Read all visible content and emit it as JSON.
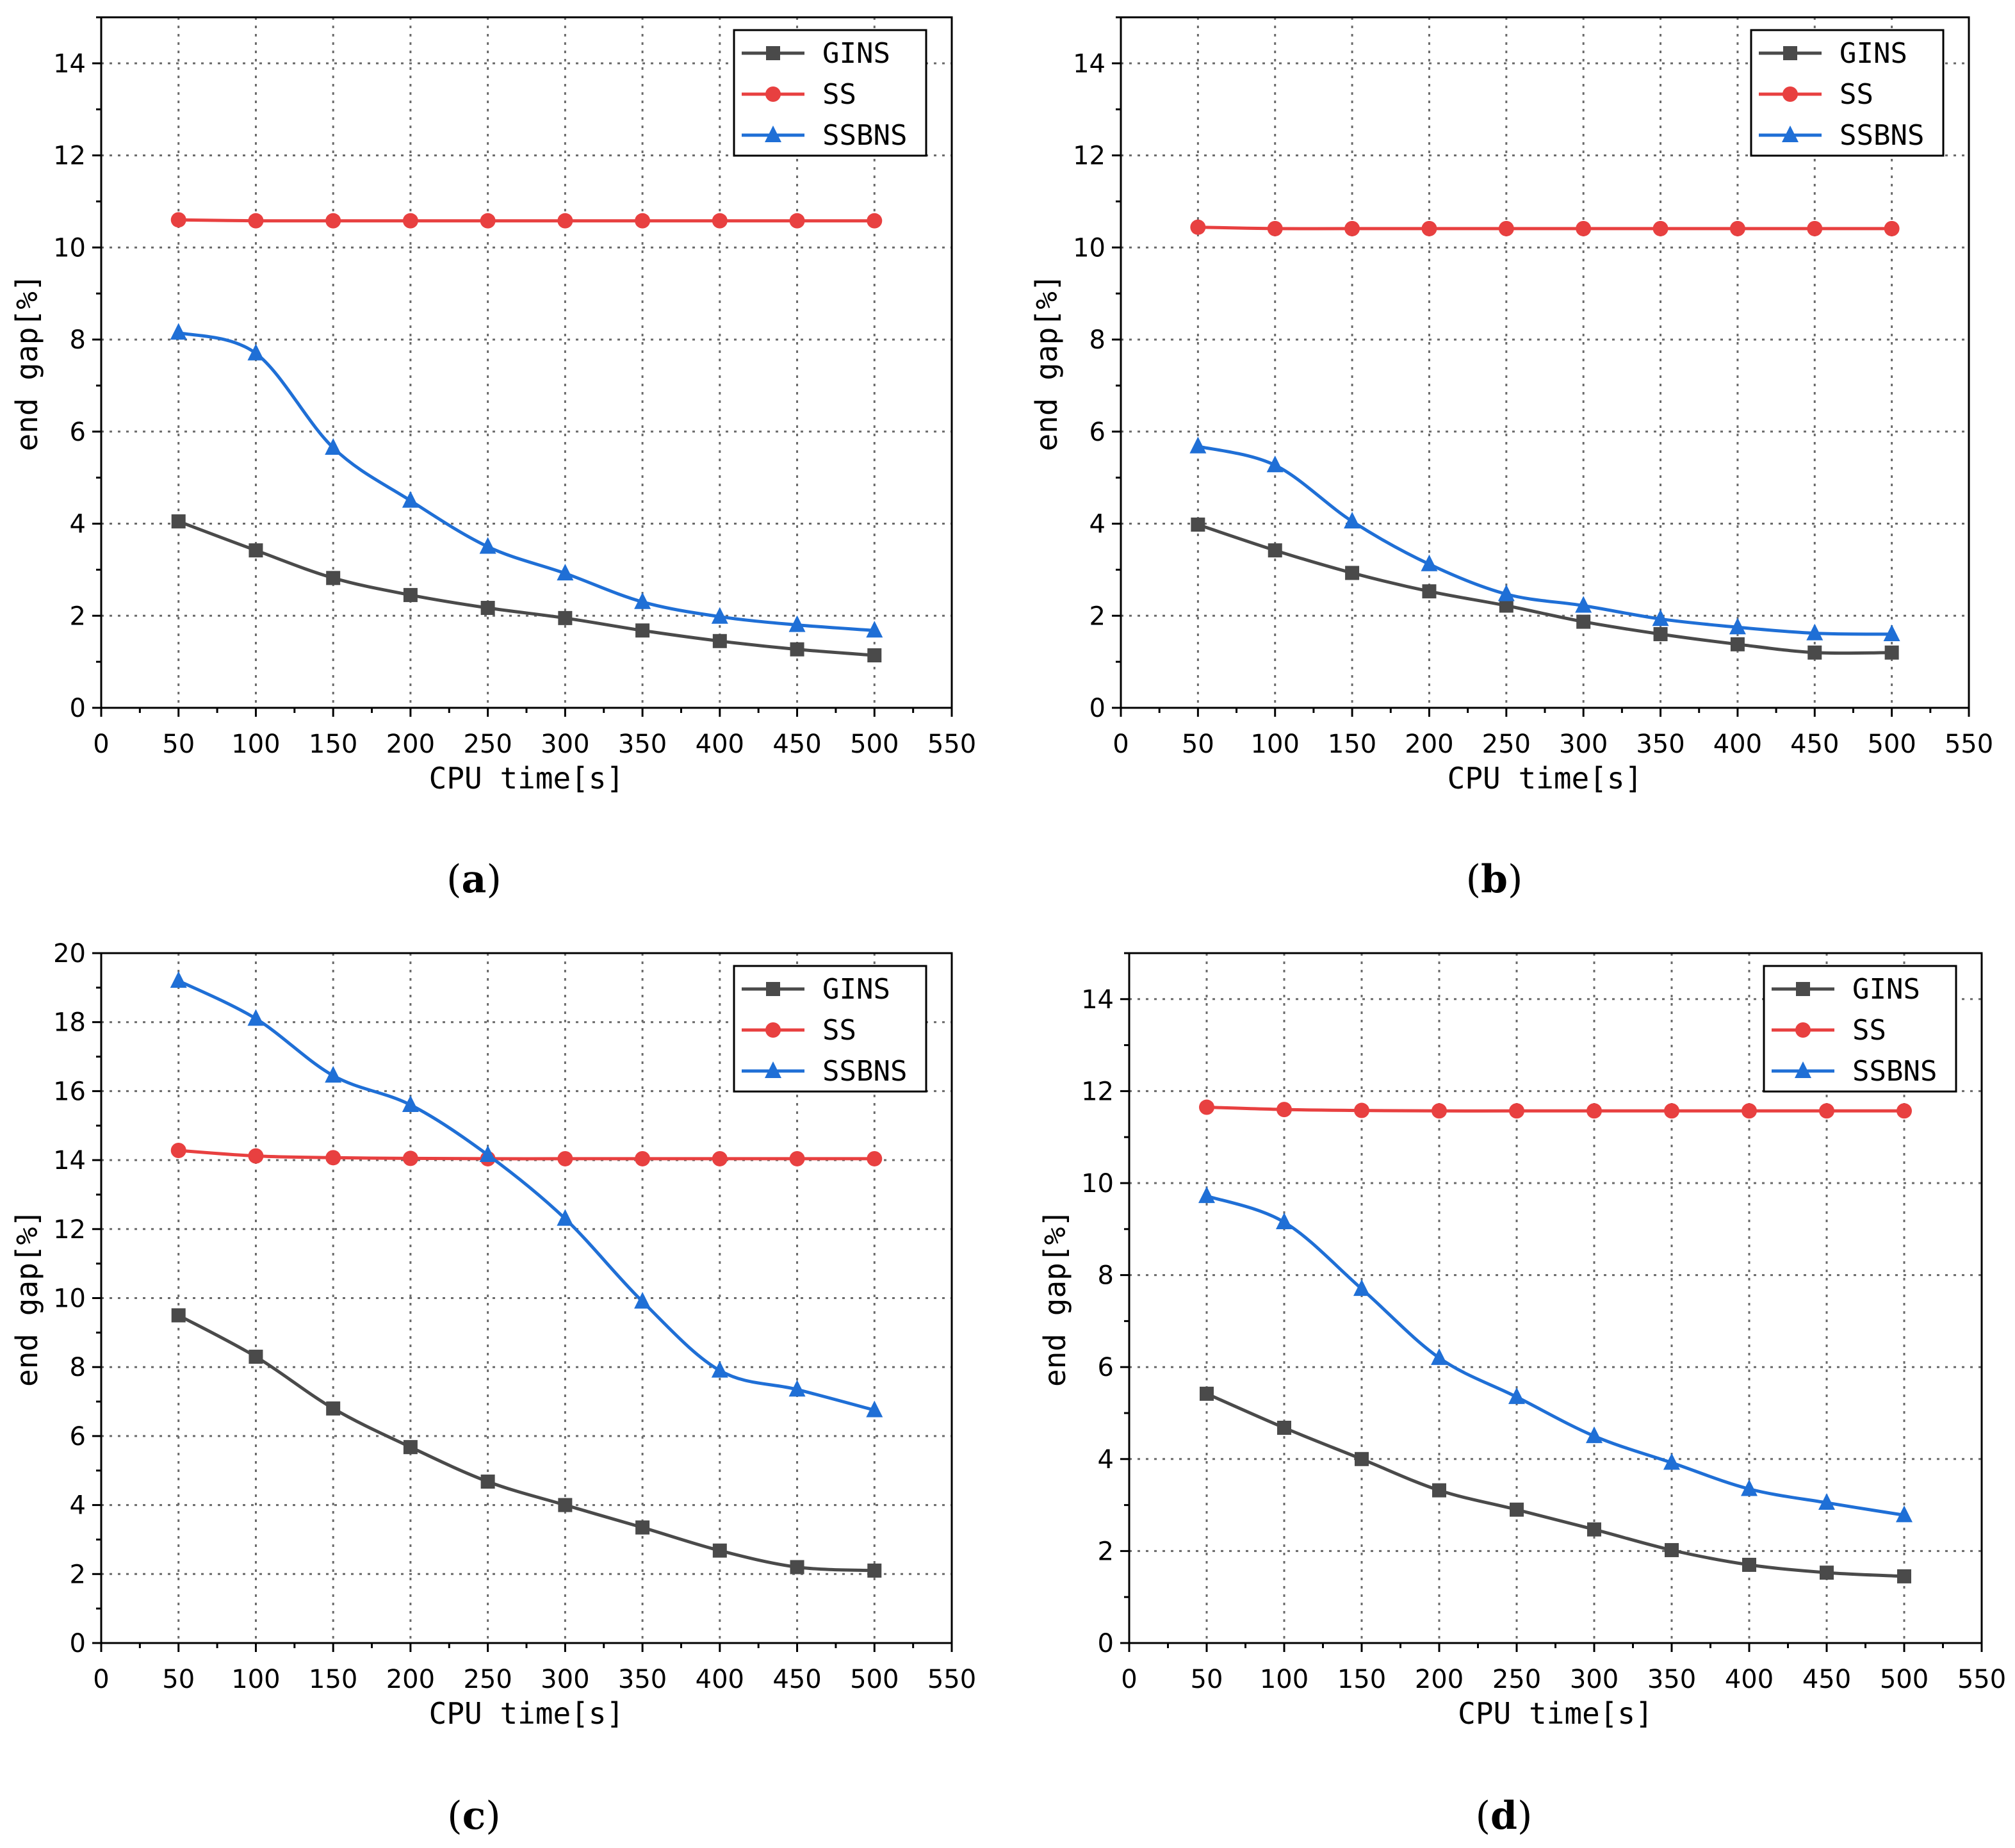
{
  "chart_data": [
    {
      "type": "line",
      "caption": "a",
      "xlabel": "CPU time[s]",
      "ylabel": "end gap[%]",
      "xlim": [
        0,
        550
      ],
      "ylim": [
        0,
        15
      ],
      "xticks": [
        0,
        50,
        100,
        150,
        200,
        250,
        300,
        350,
        400,
        450,
        500,
        550
      ],
      "yticks": [
        0,
        2,
        4,
        6,
        8,
        10,
        12,
        14
      ],
      "grid": true,
      "legend_position": "top-right",
      "x": [
        50,
        100,
        150,
        200,
        250,
        300,
        350,
        400,
        450,
        500
      ],
      "series": [
        {
          "name": "GINS",
          "color": "#4a4a4a",
          "marker": "square",
          "values": [
            4.05,
            3.42,
            2.82,
            2.45,
            2.17,
            1.95,
            1.68,
            1.45,
            1.27,
            1.14
          ]
        },
        {
          "name": "SS",
          "color": "#e84040",
          "marker": "circle",
          "values": [
            10.6,
            10.58,
            10.58,
            10.58,
            10.58,
            10.58,
            10.58,
            10.58,
            10.58,
            10.58
          ]
        },
        {
          "name": "SSBNS",
          "color": "#1f6fd6",
          "marker": "triangle",
          "values": [
            8.15,
            7.7,
            5.65,
            4.5,
            3.5,
            2.92,
            2.3,
            1.98,
            1.8,
            1.68
          ]
        }
      ]
    },
    {
      "type": "line",
      "caption": "b",
      "xlabel": "CPU time[s]",
      "ylabel": "end gap[%]",
      "xlim": [
        0,
        550
      ],
      "ylim": [
        0,
        15
      ],
      "xticks": [
        0,
        50,
        100,
        150,
        200,
        250,
        300,
        350,
        400,
        450,
        500,
        550
      ],
      "yticks": [
        0,
        2,
        4,
        6,
        8,
        10,
        12,
        14
      ],
      "grid": true,
      "legend_position": "top-right",
      "x": [
        50,
        100,
        150,
        200,
        250,
        300,
        350,
        400,
        450,
        500
      ],
      "series": [
        {
          "name": "GINS",
          "color": "#4a4a4a",
          "marker": "square",
          "values": [
            3.98,
            3.42,
            2.93,
            2.53,
            2.22,
            1.87,
            1.6,
            1.38,
            1.2,
            1.2
          ]
        },
        {
          "name": "SS",
          "color": "#e84040",
          "marker": "circle",
          "values": [
            10.44,
            10.41,
            10.41,
            10.41,
            10.41,
            10.41,
            10.41,
            10.41,
            10.41,
            10.41
          ]
        },
        {
          "name": "SSBNS",
          "color": "#1f6fd6",
          "marker": "triangle",
          "values": [
            5.68,
            5.27,
            4.05,
            3.12,
            2.47,
            2.22,
            1.93,
            1.75,
            1.62,
            1.6
          ]
        }
      ]
    },
    {
      "type": "line",
      "caption": "c",
      "xlabel": "CPU time[s]",
      "ylabel": "end gap[%]",
      "xlim": [
        0,
        550
      ],
      "ylim": [
        0,
        20
      ],
      "xticks": [
        0,
        50,
        100,
        150,
        200,
        250,
        300,
        350,
        400,
        450,
        500,
        550
      ],
      "yticks": [
        0,
        2,
        4,
        6,
        8,
        10,
        12,
        14,
        16,
        18,
        20
      ],
      "grid": true,
      "legend_position": "top-right",
      "x": [
        50,
        100,
        150,
        200,
        250,
        300,
        350,
        400,
        450,
        500
      ],
      "series": [
        {
          "name": "GINS",
          "color": "#4a4a4a",
          "marker": "square",
          "values": [
            9.5,
            8.3,
            6.8,
            5.68,
            4.68,
            4.0,
            3.35,
            2.68,
            2.2,
            2.1
          ]
        },
        {
          "name": "SS",
          "color": "#e84040",
          "marker": "circle",
          "values": [
            14.28,
            14.12,
            14.07,
            14.05,
            14.04,
            14.04,
            14.04,
            14.04,
            14.04,
            14.04
          ]
        },
        {
          "name": "SSBNS",
          "color": "#1f6fd6",
          "marker": "triangle",
          "values": [
            19.2,
            18.1,
            16.45,
            15.6,
            14.15,
            12.3,
            9.9,
            7.9,
            7.35,
            6.75
          ]
        }
      ]
    },
    {
      "type": "line",
      "caption": "d",
      "xlabel": "CPU time[s]",
      "ylabel": "end gap[%]",
      "xlim": [
        0,
        550
      ],
      "ylim": [
        0,
        15
      ],
      "xticks": [
        0,
        50,
        100,
        150,
        200,
        250,
        300,
        350,
        400,
        450,
        500,
        550
      ],
      "yticks": [
        0,
        2,
        4,
        6,
        8,
        10,
        12,
        14
      ],
      "grid": true,
      "legend_position": "top-right",
      "x": [
        50,
        100,
        150,
        200,
        250,
        300,
        350,
        400,
        450,
        500
      ],
      "series": [
        {
          "name": "GINS",
          "color": "#4a4a4a",
          "marker": "square",
          "values": [
            5.42,
            4.68,
            4.0,
            3.32,
            2.9,
            2.47,
            2.02,
            1.7,
            1.53,
            1.45
          ]
        },
        {
          "name": "SS",
          "color": "#e84040",
          "marker": "circle",
          "values": [
            11.65,
            11.6,
            11.58,
            11.57,
            11.57,
            11.57,
            11.57,
            11.57,
            11.57,
            11.57
          ]
        },
        {
          "name": "SSBNS",
          "color": "#1f6fd6",
          "marker": "triangle",
          "values": [
            9.72,
            9.15,
            7.7,
            6.2,
            5.35,
            4.5,
            3.92,
            3.35,
            3.05,
            2.78
          ]
        }
      ]
    }
  ]
}
